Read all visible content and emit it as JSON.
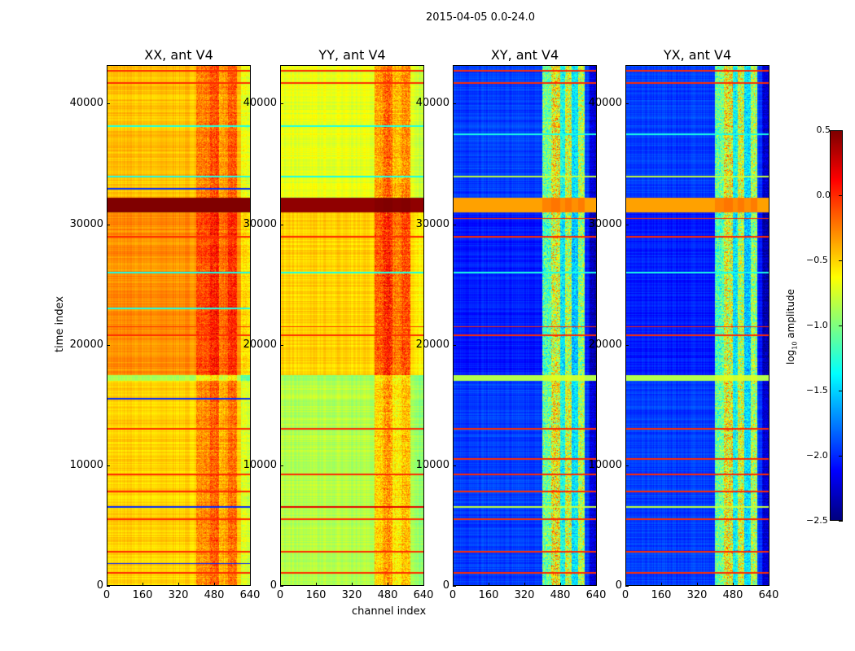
{
  "chart_data": {
    "type": "heatmap",
    "title": "2015-04-05 0.0-24.0",
    "xlabel": "channel index",
    "ylabel": "time index",
    "xlim": [
      0,
      640
    ],
    "ylim": [
      0,
      43200
    ],
    "xticks": [
      "0",
      "160",
      "320",
      "480",
      "640"
    ],
    "yticks": [
      "0",
      "10000",
      "20000",
      "30000",
      "40000"
    ],
    "colorbar": {
      "label": "log10 amplitude",
      "label_main": "log",
      "label_sub": "10",
      "label_rest": " amplitude",
      "range": [
        -2.5,
        0.5
      ],
      "ticks": [
        "0.5",
        "0.0",
        "−0.5",
        "−1.0",
        "−1.5",
        "−2.0",
        "−2.5"
      ],
      "colormap": "jet"
    },
    "panels": [
      {
        "title": "XX, ant V4",
        "base": -0.45,
        "channel_bands": [
          [
            400,
            460,
            0.2
          ],
          [
            460,
            500,
            0.35
          ],
          [
            500,
            540,
            0.1
          ],
          [
            540,
            580,
            0.3
          ],
          [
            600,
            640,
            -0.25
          ]
        ],
        "time_bands": [
          [
            0,
            17000,
            -0.05
          ],
          [
            17500,
            31000,
            0.15
          ],
          [
            31000,
            32200,
            1.0
          ],
          [
            17000,
            17500,
            -0.45
          ]
        ],
        "flag_lines": [
          [
            42800,
            0.0
          ],
          [
            41800,
            0.0
          ],
          [
            38200,
            -1.3
          ],
          [
            34000,
            -1.3
          ],
          [
            33000,
            -2.0
          ],
          [
            29000,
            0.0
          ],
          [
            26000,
            -1.3
          ],
          [
            23000,
            -1.3
          ],
          [
            21500,
            0.0
          ],
          [
            20800,
            0.0
          ],
          [
            15500,
            -2.0
          ],
          [
            13000,
            0.0
          ],
          [
            9200,
            0.0
          ],
          [
            7800,
            0.0
          ],
          [
            6500,
            -2.0
          ],
          [
            5500,
            0.0
          ],
          [
            2800,
            0.0
          ],
          [
            1800,
            -2.0
          ],
          [
            1000,
            0.0
          ]
        ]
      },
      {
        "title": "YY, ant V4",
        "base": -0.7,
        "channel_bands": [
          [
            420,
            460,
            0.35
          ],
          [
            460,
            500,
            0.5
          ],
          [
            500,
            540,
            0.25
          ],
          [
            540,
            580,
            0.4
          ],
          [
            600,
            640,
            -0.1
          ]
        ],
        "time_bands": [
          [
            0,
            17000,
            -0.15
          ],
          [
            17500,
            31000,
            0.2
          ],
          [
            31000,
            32200,
            1.15
          ],
          [
            17000,
            17500,
            -0.2
          ]
        ],
        "flag_lines": [
          [
            42800,
            0.0
          ],
          [
            41800,
            0.0
          ],
          [
            38200,
            -1.3
          ],
          [
            34000,
            -1.3
          ],
          [
            29000,
            0.0
          ],
          [
            26000,
            -1.3
          ],
          [
            21500,
            0.0
          ],
          [
            20800,
            0.0
          ],
          [
            13000,
            0.0
          ],
          [
            9200,
            0.0
          ],
          [
            6500,
            0.2
          ],
          [
            5500,
            0.0
          ],
          [
            2800,
            0.0
          ],
          [
            1000,
            0.0
          ]
        ]
      },
      {
        "title": "XY, ant V4",
        "base": -1.95,
        "channel_bands": [
          [
            400,
            440,
            0.9
          ],
          [
            440,
            480,
            1.3
          ],
          [
            480,
            500,
            0.6
          ],
          [
            500,
            530,
            1.2
          ],
          [
            530,
            560,
            0.5
          ],
          [
            560,
            590,
            1.1
          ],
          [
            610,
            640,
            -0.3
          ]
        ],
        "time_bands": [
          [
            0,
            17000,
            0.0
          ],
          [
            17500,
            31000,
            -0.1
          ],
          [
            31000,
            32200,
            1.6
          ],
          [
            17000,
            17500,
            1.1
          ]
        ],
        "flag_lines": [
          [
            42800,
            0.0
          ],
          [
            41800,
            0.0
          ],
          [
            37500,
            -1.3
          ],
          [
            34000,
            -0.8
          ],
          [
            30500,
            0.0
          ],
          [
            29000,
            0.0
          ],
          [
            26000,
            -1.3
          ],
          [
            21500,
            0.0
          ],
          [
            20800,
            0.0
          ],
          [
            13000,
            0.0
          ],
          [
            10500,
            0.0
          ],
          [
            9200,
            0.0
          ],
          [
            7800,
            0.0
          ],
          [
            6500,
            -0.8
          ],
          [
            5500,
            0.0
          ],
          [
            2800,
            0.0
          ],
          [
            1000,
            0.0
          ]
        ]
      },
      {
        "title": "YX, ant V4",
        "base": -1.95,
        "channel_bands": [
          [
            400,
            440,
            0.9
          ],
          [
            440,
            480,
            1.3
          ],
          [
            480,
            500,
            0.6
          ],
          [
            500,
            530,
            1.2
          ],
          [
            530,
            560,
            0.5
          ],
          [
            560,
            590,
            1.1
          ],
          [
            610,
            640,
            -0.3
          ]
        ],
        "time_bands": [
          [
            0,
            17000,
            0.0
          ],
          [
            17500,
            31000,
            -0.1
          ],
          [
            31000,
            32200,
            1.6
          ],
          [
            17000,
            17500,
            1.1
          ]
        ],
        "flag_lines": [
          [
            42800,
            0.0
          ],
          [
            41800,
            0.0
          ],
          [
            37500,
            -1.3
          ],
          [
            34000,
            -0.8
          ],
          [
            30500,
            0.0
          ],
          [
            29000,
            0.0
          ],
          [
            26000,
            -1.3
          ],
          [
            21500,
            0.0
          ],
          [
            20800,
            0.0
          ],
          [
            13000,
            0.0
          ],
          [
            10500,
            0.0
          ],
          [
            9200,
            0.0
          ],
          [
            7800,
            0.0
          ],
          [
            6500,
            -0.8
          ],
          [
            5500,
            0.0
          ],
          [
            2800,
            0.0
          ],
          [
            1000,
            0.0
          ]
        ]
      }
    ]
  }
}
